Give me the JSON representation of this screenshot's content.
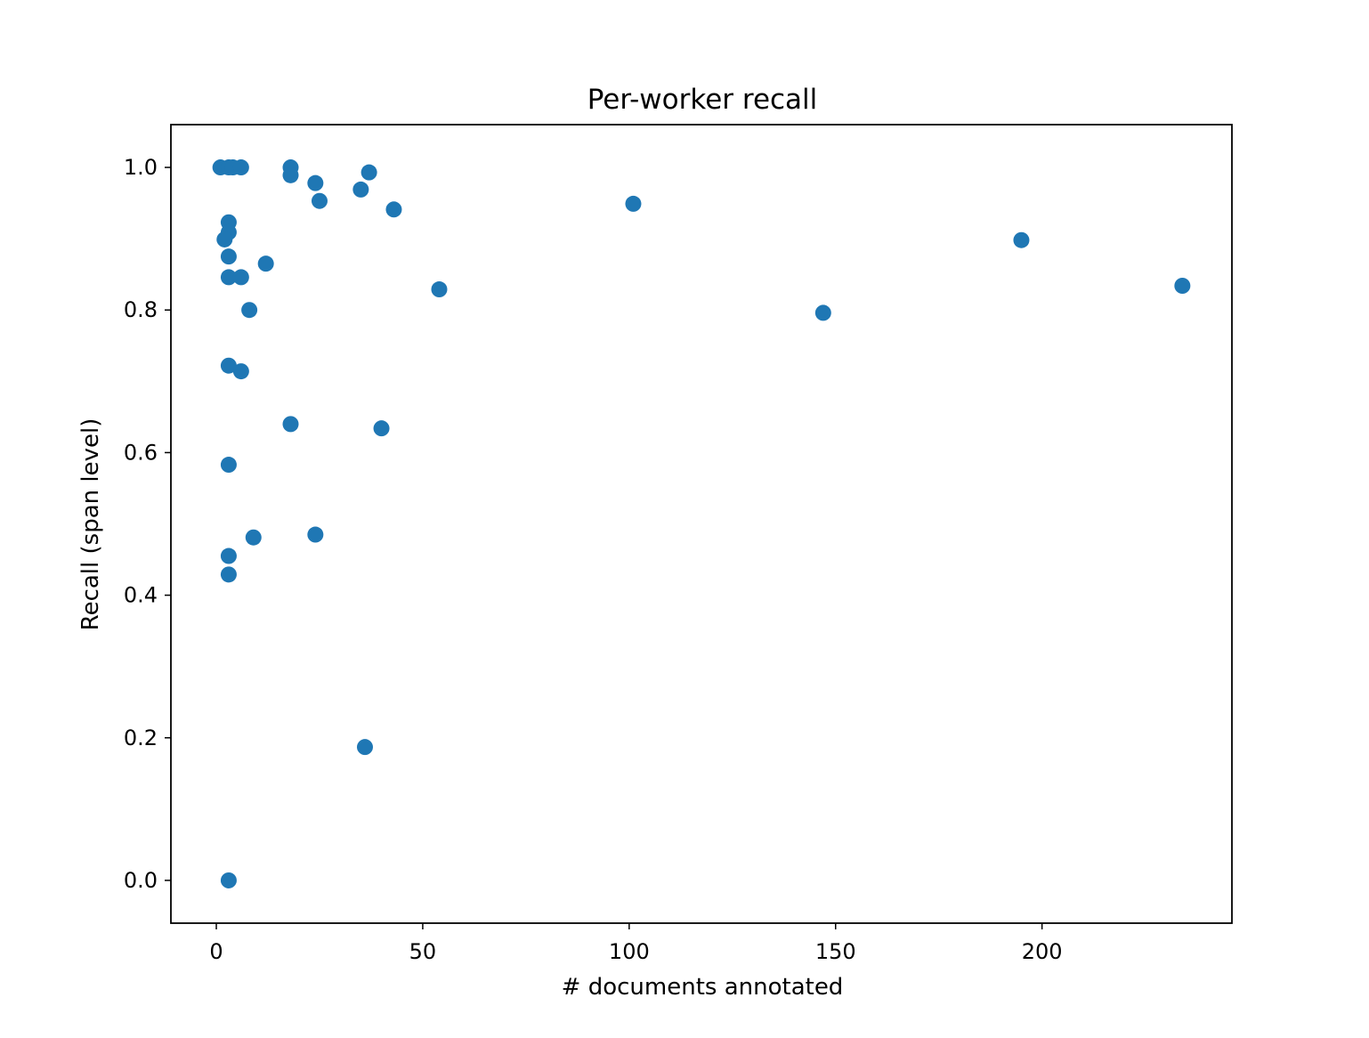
{
  "chart_data": {
    "type": "scatter",
    "title": "Per-worker recall",
    "xlabel": "# documents annotated",
    "ylabel": "Recall (span level)",
    "xlim": [
      -11,
      246
    ],
    "ylim": [
      -0.06,
      1.06
    ],
    "xticks": [
      0,
      50,
      100,
      150,
      200
    ],
    "yticks": [
      0.0,
      0.2,
      0.4,
      0.6,
      0.8,
      1.0
    ],
    "xtick_labels": [
      "0",
      "50",
      "100",
      "150",
      "200"
    ],
    "ytick_labels": [
      "0.0",
      "0.2",
      "0.4",
      "0.6",
      "0.8",
      "1.0"
    ],
    "grid": false,
    "color": "#1f77b4",
    "points": [
      {
        "x": 1,
        "y": 1.0
      },
      {
        "x": 3,
        "y": 1.0
      },
      {
        "x": 4,
        "y": 1.0
      },
      {
        "x": 6,
        "y": 1.0
      },
      {
        "x": 18,
        "y": 1.0
      },
      {
        "x": 18,
        "y": 0.989
      },
      {
        "x": 24,
        "y": 0.978
      },
      {
        "x": 37,
        "y": 0.993
      },
      {
        "x": 35,
        "y": 0.969
      },
      {
        "x": 25,
        "y": 0.953
      },
      {
        "x": 43,
        "y": 0.941
      },
      {
        "x": 101,
        "y": 0.949
      },
      {
        "x": 3,
        "y": 0.923
      },
      {
        "x": 3,
        "y": 0.909
      },
      {
        "x": 2,
        "y": 0.899
      },
      {
        "x": 195,
        "y": 0.898
      },
      {
        "x": 3,
        "y": 0.875
      },
      {
        "x": 12,
        "y": 0.865
      },
      {
        "x": 3,
        "y": 0.846
      },
      {
        "x": 6,
        "y": 0.846
      },
      {
        "x": 234,
        "y": 0.834
      },
      {
        "x": 54,
        "y": 0.829
      },
      {
        "x": 8,
        "y": 0.8
      },
      {
        "x": 147,
        "y": 0.796
      },
      {
        "x": 3,
        "y": 0.722
      },
      {
        "x": 6,
        "y": 0.714
      },
      {
        "x": 18,
        "y": 0.64
      },
      {
        "x": 40,
        "y": 0.634
      },
      {
        "x": 3,
        "y": 0.583
      },
      {
        "x": 24,
        "y": 0.485
      },
      {
        "x": 9,
        "y": 0.481
      },
      {
        "x": 3,
        "y": 0.455
      },
      {
        "x": 3,
        "y": 0.429
      },
      {
        "x": 36,
        "y": 0.187
      },
      {
        "x": 3,
        "y": 0.0
      }
    ]
  }
}
